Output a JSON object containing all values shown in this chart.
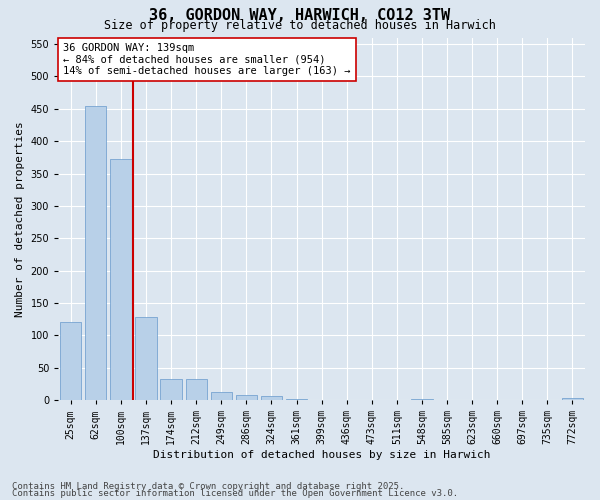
{
  "title": "36, GORDON WAY, HARWICH, CO12 3TW",
  "subtitle": "Size of property relative to detached houses in Harwich",
  "xlabel": "Distribution of detached houses by size in Harwich",
  "ylabel": "Number of detached properties",
  "categories": [
    "25sqm",
    "62sqm",
    "100sqm",
    "137sqm",
    "174sqm",
    "212sqm",
    "249sqm",
    "286sqm",
    "324sqm",
    "361sqm",
    "399sqm",
    "436sqm",
    "473sqm",
    "511sqm",
    "548sqm",
    "585sqm",
    "623sqm",
    "660sqm",
    "697sqm",
    "735sqm",
    "772sqm"
  ],
  "values": [
    120,
    455,
    373,
    128,
    33,
    33,
    13,
    8,
    6,
    2,
    1,
    0,
    0,
    0,
    2,
    0,
    0,
    0,
    0,
    0,
    3
  ],
  "bar_color": "#b8d0e8",
  "bar_edge_color": "#6699cc",
  "vline_x_index": 3,
  "vline_color": "#cc0000",
  "annotation_line1": "36 GORDON WAY: 139sqm",
  "annotation_line2": "← 84% of detached houses are smaller (954)",
  "annotation_line3": "14% of semi-detached houses are larger (163) →",
  "annotation_box_color": "#ffffff",
  "annotation_box_edge": "#cc0000",
  "ylim": [
    0,
    560
  ],
  "yticks": [
    0,
    50,
    100,
    150,
    200,
    250,
    300,
    350,
    400,
    450,
    500,
    550
  ],
  "background_color": "#dce6f0",
  "grid_color": "#ffffff",
  "footer_line1": "Contains HM Land Registry data © Crown copyright and database right 2025.",
  "footer_line2": "Contains public sector information licensed under the Open Government Licence v3.0.",
  "title_fontsize": 11,
  "subtitle_fontsize": 8.5,
  "axis_label_fontsize": 8,
  "tick_fontsize": 7,
  "annotation_fontsize": 7.5,
  "footer_fontsize": 6.5
}
